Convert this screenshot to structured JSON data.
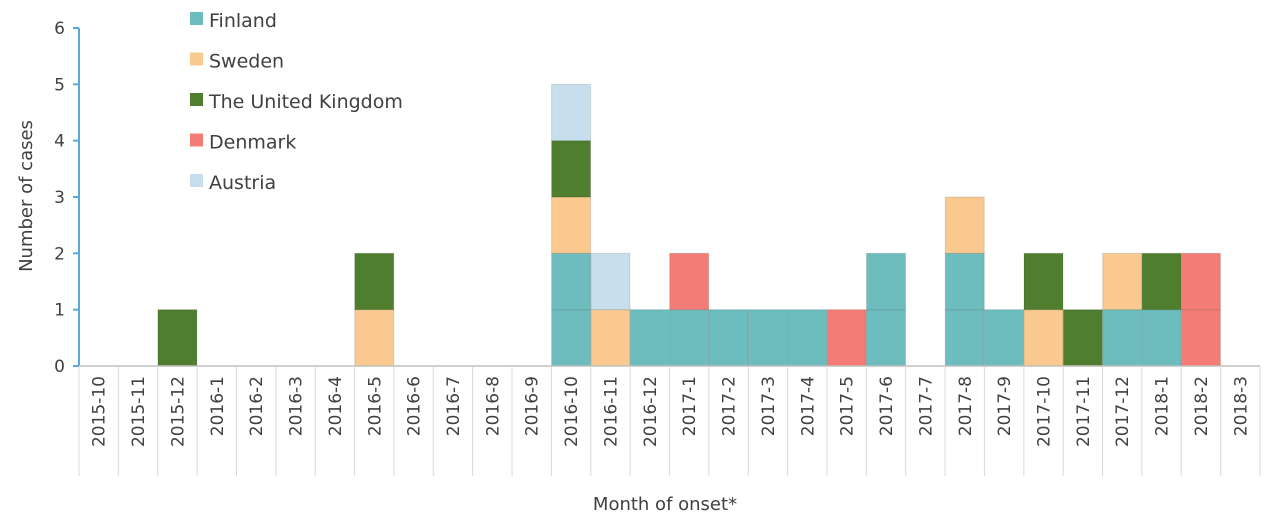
{
  "chart_data": {
    "type": "bar",
    "stacked": true,
    "xlabel": "Month of onset*",
    "ylabel": "Number of cases",
    "ylim": [
      0,
      6
    ],
    "yticks": [
      0,
      1,
      2,
      3,
      4,
      5,
      6
    ],
    "grid": false,
    "legend_position": "top-left",
    "categories": [
      "2015-10",
      "2015-11",
      "2015-12",
      "2016-1",
      "2016-2",
      "2016-3",
      "2016-4",
      "2016-5",
      "2016-6",
      "2016-7",
      "2016-8",
      "2016-9",
      "2016-10",
      "2016-11",
      "2016-12",
      "2017-1",
      "2017-2",
      "2017-3",
      "2017-4",
      "2017-5",
      "2017-6",
      "2017-7",
      "2017-8",
      "2017-9",
      "2017-10",
      "2017-11",
      "2017-12",
      "2018-1",
      "2018-2",
      "2018-3"
    ],
    "series": [
      {
        "name": "Finland",
        "color": "#6dbdbf",
        "values": [
          0,
          0,
          0,
          0,
          0,
          0,
          0,
          0,
          0,
          0,
          0,
          0,
          2,
          0,
          1,
          1,
          1,
          1,
          1,
          0,
          2,
          0,
          2,
          1,
          0,
          0,
          1,
          1,
          0,
          0
        ]
      },
      {
        "name": "Sweden",
        "color": "#f9c98f",
        "values": [
          0,
          0,
          0,
          0,
          0,
          0,
          0,
          1,
          0,
          0,
          0,
          0,
          1,
          1,
          0,
          0,
          0,
          0,
          0,
          0,
          0,
          0,
          1,
          0,
          1,
          0,
          1,
          0,
          0,
          0
        ]
      },
      {
        "name": "The United Kingdom",
        "color": "#4e7e2e",
        "values": [
          0,
          0,
          1,
          0,
          0,
          0,
          0,
          1,
          0,
          0,
          0,
          0,
          1,
          0,
          0,
          0,
          0,
          0,
          0,
          0,
          0,
          0,
          0,
          0,
          1,
          1,
          0,
          1,
          0,
          0
        ]
      },
      {
        "name": "Denmark",
        "color": "#f47c77",
        "values": [
          0,
          0,
          0,
          0,
          0,
          0,
          0,
          0,
          0,
          0,
          0,
          0,
          0,
          0,
          0,
          1,
          0,
          0,
          0,
          1,
          0,
          0,
          0,
          0,
          0,
          0,
          0,
          0,
          2,
          0
        ]
      },
      {
        "name": "Austria",
        "color": "#c7dfec",
        "values": [
          0,
          0,
          0,
          0,
          0,
          0,
          0,
          0,
          0,
          0,
          0,
          0,
          1,
          1,
          0,
          0,
          0,
          0,
          0,
          0,
          0,
          0,
          0,
          0,
          0,
          0,
          0,
          0,
          0,
          0
        ]
      }
    ],
    "axis_color": "#5aa9dd"
  }
}
